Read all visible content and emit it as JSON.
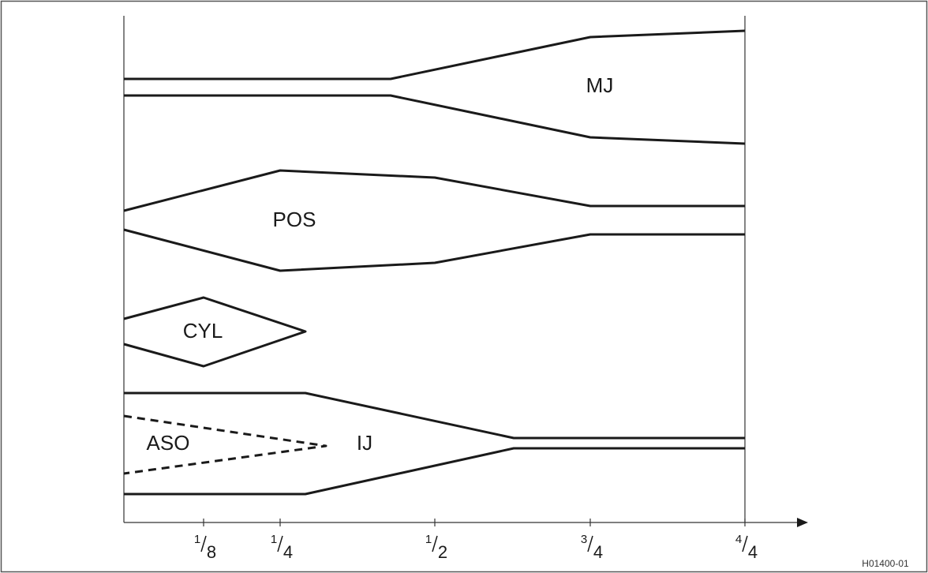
{
  "regions": {
    "mj": "MJ",
    "pos": "POS",
    "cyl": "CYL",
    "aso": "ASO",
    "ij": "IJ"
  },
  "axis": {
    "ticks": [
      {
        "num": "1",
        "den": "8"
      },
      {
        "num": "1",
        "den": "4"
      },
      {
        "num": "1",
        "den": "2"
      },
      {
        "num": "3",
        "den": "4"
      },
      {
        "num": "4",
        "den": "4"
      }
    ]
  },
  "figure_id": "H01400-01"
}
